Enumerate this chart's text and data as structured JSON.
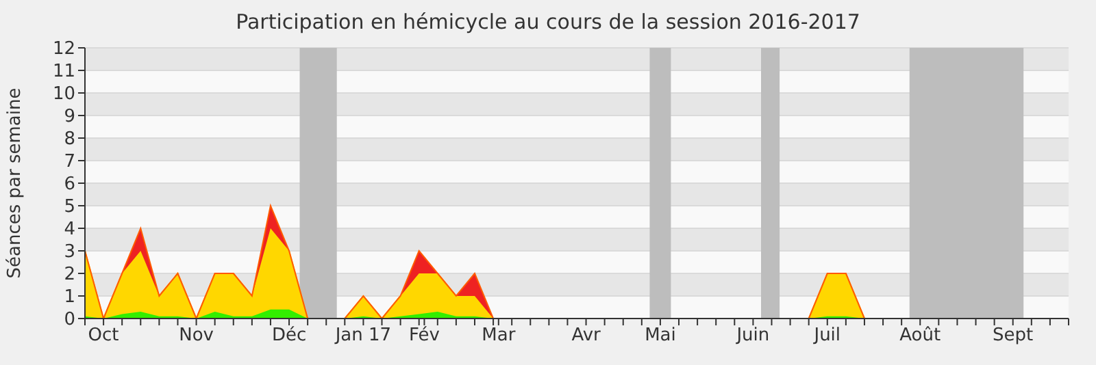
{
  "chart_data": {
    "type": "area",
    "title": "Participation en hémicycle au cours de la session 2016-2017",
    "ylabel": "Séances par semaine",
    "stacked": true,
    "x": [
      "2016-09-26",
      "2016-10-03",
      "2016-10-10",
      "2016-10-17",
      "2016-10-24",
      "2016-10-31",
      "2016-11-07",
      "2016-11-14",
      "2016-11-21",
      "2016-11-28",
      "2016-12-05",
      "2016-12-12",
      "2016-12-19",
      "2016-12-26",
      "2017-01-02",
      "2017-01-09",
      "2017-01-16",
      "2017-01-23",
      "2017-01-30",
      "2017-02-06",
      "2017-02-13",
      "2017-02-20",
      "2017-02-27",
      "2017-03-06",
      "2017-03-13",
      "2017-03-20",
      "2017-03-27",
      "2017-04-03",
      "2017-04-10",
      "2017-04-17",
      "2017-04-24",
      "2017-05-01",
      "2017-05-08",
      "2017-05-15",
      "2017-05-22",
      "2017-05-29",
      "2017-06-05",
      "2017-06-12",
      "2017-06-19",
      "2017-06-26",
      "2017-07-03",
      "2017-07-10",
      "2017-07-17",
      "2017-07-24",
      "2017-07-31",
      "2017-08-07",
      "2017-08-14",
      "2017-08-21",
      "2017-08-28",
      "2017-09-04",
      "2017-09-11",
      "2017-09-18",
      "2017-09-25",
      "2017-10-02"
    ],
    "series": [
      {
        "color": "#33ee00",
        "values": [
          0.1,
          0,
          0.2,
          0.3,
          0.1,
          0.1,
          0,
          0.3,
          0.1,
          0.1,
          0.4,
          0.4,
          0,
          0,
          0,
          0.1,
          0,
          0.1,
          0.2,
          0.3,
          0.1,
          0.1,
          0,
          0,
          0,
          0,
          0,
          0,
          0,
          0,
          0,
          0,
          0,
          0,
          0,
          0,
          0,
          0,
          0,
          0,
          0.1,
          0.1,
          0,
          0,
          0,
          0,
          0,
          0,
          0,
          0,
          0,
          0,
          0,
          0
        ]
      },
      {
        "color": "#ffd700",
        "values": [
          2.9,
          0,
          1.8,
          2.7,
          0.9,
          1.9,
          0,
          1.7,
          1.9,
          0.9,
          3.6,
          2.6,
          0,
          0,
          0,
          0.9,
          0,
          0.9,
          1.8,
          1.7,
          0.9,
          0.9,
          0,
          0,
          0,
          0,
          0,
          0,
          0,
          0,
          0,
          0,
          0,
          0,
          0,
          0,
          0,
          0,
          0,
          0,
          1.9,
          1.9,
          0,
          0,
          0,
          0,
          0,
          0,
          0,
          0,
          0,
          0,
          0,
          0
        ]
      },
      {
        "color": "#ee2222",
        "values": [
          0,
          0,
          0,
          1,
          0,
          0,
          0,
          0,
          0,
          0,
          1,
          0,
          0,
          0,
          0,
          0,
          0,
          0,
          1,
          0,
          0,
          1,
          0,
          0,
          0,
          0,
          0,
          0,
          0,
          0,
          0,
          0,
          0,
          0,
          0,
          0,
          0,
          0,
          0,
          0,
          0,
          0,
          0,
          0,
          0,
          0,
          0,
          0,
          0,
          0,
          0,
          0,
          0,
          0
        ]
      }
    ],
    "xlim": [
      "2016-09-26",
      "2017-10-02"
    ],
    "xticks": [
      {
        "value": "2016-09-26",
        "label": null
      },
      {
        "value": "2016-10-03",
        "label": "Oct"
      },
      {
        "value": "2016-10-10",
        "label": null
      },
      {
        "value": "2016-10-17",
        "label": null
      },
      {
        "value": "2016-10-24",
        "label": null
      },
      {
        "value": "2016-10-31",
        "label": null
      },
      {
        "value": "2016-11-07",
        "label": "Nov"
      },
      {
        "value": "2016-11-14",
        "label": null
      },
      {
        "value": "2016-11-21",
        "label": null
      },
      {
        "value": "2016-11-28",
        "label": null
      },
      {
        "value": "2016-12-05",
        "label": null
      },
      {
        "value": "2016-12-12",
        "label": "Déc"
      },
      {
        "value": "2016-12-19",
        "label": null
      },
      {
        "value": "2016-12-26",
        "label": null
      },
      {
        "value": "2017-01-02",
        "label": null
      },
      {
        "value": "2017-01-09",
        "label": "Jan 17"
      },
      {
        "value": "2017-01-16",
        "label": null
      },
      {
        "value": "2017-01-23",
        "label": null
      },
      {
        "value": "2017-01-30",
        "label": null
      },
      {
        "value": "2017-02-01",
        "label": "Fév"
      },
      {
        "value": "2017-02-06",
        "label": null
      },
      {
        "value": "2017-02-13",
        "label": null
      },
      {
        "value": "2017-02-20",
        "label": null
      },
      {
        "value": "2017-02-27",
        "label": null
      },
      {
        "value": "2017-03-01",
        "label": "Mar"
      },
      {
        "value": "2017-03-06",
        "label": null
      },
      {
        "value": "2017-03-13",
        "label": null
      },
      {
        "value": "2017-03-20",
        "label": null
      },
      {
        "value": "2017-03-27",
        "label": null
      },
      {
        "value": "2017-04-03",
        "label": "Avr"
      },
      {
        "value": "2017-04-10",
        "label": null
      },
      {
        "value": "2017-04-17",
        "label": null
      },
      {
        "value": "2017-04-24",
        "label": null
      },
      {
        "value": "2017-05-01",
        "label": "Mai"
      },
      {
        "value": "2017-05-08",
        "label": null
      },
      {
        "value": "2017-05-15",
        "label": null
      },
      {
        "value": "2017-05-22",
        "label": null
      },
      {
        "value": "2017-05-29",
        "label": null
      },
      {
        "value": "2017-06-05",
        "label": "Juin"
      },
      {
        "value": "2017-06-12",
        "label": null
      },
      {
        "value": "2017-06-19",
        "label": null
      },
      {
        "value": "2017-06-26",
        "label": null
      },
      {
        "value": "2017-07-03",
        "label": "Juil"
      },
      {
        "value": "2017-07-10",
        "label": null
      },
      {
        "value": "2017-07-17",
        "label": null
      },
      {
        "value": "2017-07-24",
        "label": null
      },
      {
        "value": "2017-07-31",
        "label": null
      },
      {
        "value": "2017-08-07",
        "label": "Août"
      },
      {
        "value": "2017-08-14",
        "label": null
      },
      {
        "value": "2017-08-21",
        "label": null
      },
      {
        "value": "2017-08-28",
        "label": null
      },
      {
        "value": "2017-09-04",
        "label": null
      },
      {
        "value": "2017-09-11",
        "label": "Sept"
      },
      {
        "value": "2017-09-18",
        "label": null
      },
      {
        "value": "2017-09-25",
        "label": null
      },
      {
        "value": "2017-10-02",
        "label": null
      }
    ],
    "ylim": [
      0,
      12
    ],
    "yticks": [
      0,
      1,
      2,
      3,
      4,
      5,
      6,
      7,
      8,
      9,
      10,
      11,
      12
    ],
    "grid": "y",
    "bands": [
      {
        "axis": "x",
        "from": "2016-12-16",
        "to": "2016-12-30",
        "color": "#bdbdbd"
      },
      {
        "axis": "x",
        "from": "2017-04-27",
        "to": "2017-05-05",
        "color": "#bdbdbd"
      },
      {
        "axis": "x",
        "from": "2017-06-08",
        "to": "2017-06-15",
        "color": "#bdbdbd"
      },
      {
        "axis": "x",
        "from": "2017-08-03",
        "to": "2017-09-15",
        "color": "#bdbdbd"
      }
    ]
  }
}
